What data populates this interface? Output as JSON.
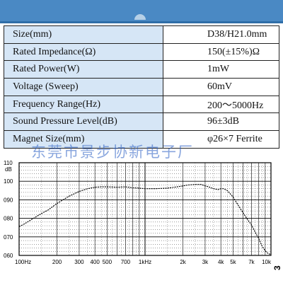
{
  "spec_table": [
    {
      "label": "Size(mm)",
      "value": "D38/H21.0mm"
    },
    {
      "label": "Rated Impedance(Ω)",
      "value": "150(±15%)Ω"
    },
    {
      "label": "Rated Power(W)",
      "value": "1mW"
    },
    {
      "label": "Voltage (Sweep)",
      "value": "60mV"
    },
    {
      "label": "Frequency Range(Hz)",
      "value": "200～5000Hz"
    },
    {
      "label": "Sound Pressure Level(dB)",
      "value": "96±3dB"
    },
    {
      "label": "Magnet Size(mm)",
      "value": "φ26×7 Ferrite"
    }
  ],
  "watermark": "东莞市景步协新电子厂",
  "side_mark": "3",
  "colors": {
    "header_band": "#4a89c4",
    "label_cell_bg": "#d6e6f6",
    "curve": "#000000",
    "grid": "#000000"
  },
  "chart_data": {
    "type": "line",
    "title": "",
    "xlabel": "",
    "ylabel": "dB",
    "x_scale": "log",
    "xlim": [
      100,
      10000
    ],
    "ylim": [
      60,
      110
    ],
    "x_tick_values": [
      100,
      200,
      300,
      400,
      500,
      700,
      1000,
      2000,
      3000,
      4000,
      5000,
      7000,
      10000
    ],
    "x_tick_labels": [
      "100Hz",
      "200",
      "300",
      "400",
      "500",
      "700",
      "1kHz",
      "2k",
      "3k",
      "4k",
      "5k",
      "7k",
      "10k"
    ],
    "y_tick_values": [
      60,
      70,
      80,
      90,
      100,
      110
    ],
    "y_tick_labels": [
      "060",
      "070",
      "080",
      "090",
      "100",
      "110"
    ],
    "grid": true,
    "series": [
      {
        "x": [
          100,
          110,
          130,
          150,
          170,
          200,
          250,
          300,
          350,
          400,
          450,
          500,
          600,
          700,
          800,
          900,
          1000,
          1200,
          1500,
          1800,
          2000,
          2200,
          2500,
          2800,
          3000,
          3200,
          3500,
          3800,
          4000,
          4200,
          4500,
          5000,
          5500,
          6000,
          6500,
          7000,
          7500,
          8000,
          8500,
          9000,
          9500,
          10000
        ],
        "y": [
          75.5,
          77,
          80,
          82.5,
          84.5,
          88,
          92,
          94.5,
          96,
          96.8,
          97,
          97,
          96.8,
          97,
          96.5,
          96.3,
          96,
          96,
          96.3,
          97,
          97.5,
          98,
          98.3,
          98.3,
          97.5,
          97,
          96,
          95.5,
          96,
          96,
          95,
          91.5,
          87,
          83,
          79.5,
          76.5,
          72.5,
          69,
          65,
          62.5,
          61,
          60.5
        ]
      }
    ]
  }
}
